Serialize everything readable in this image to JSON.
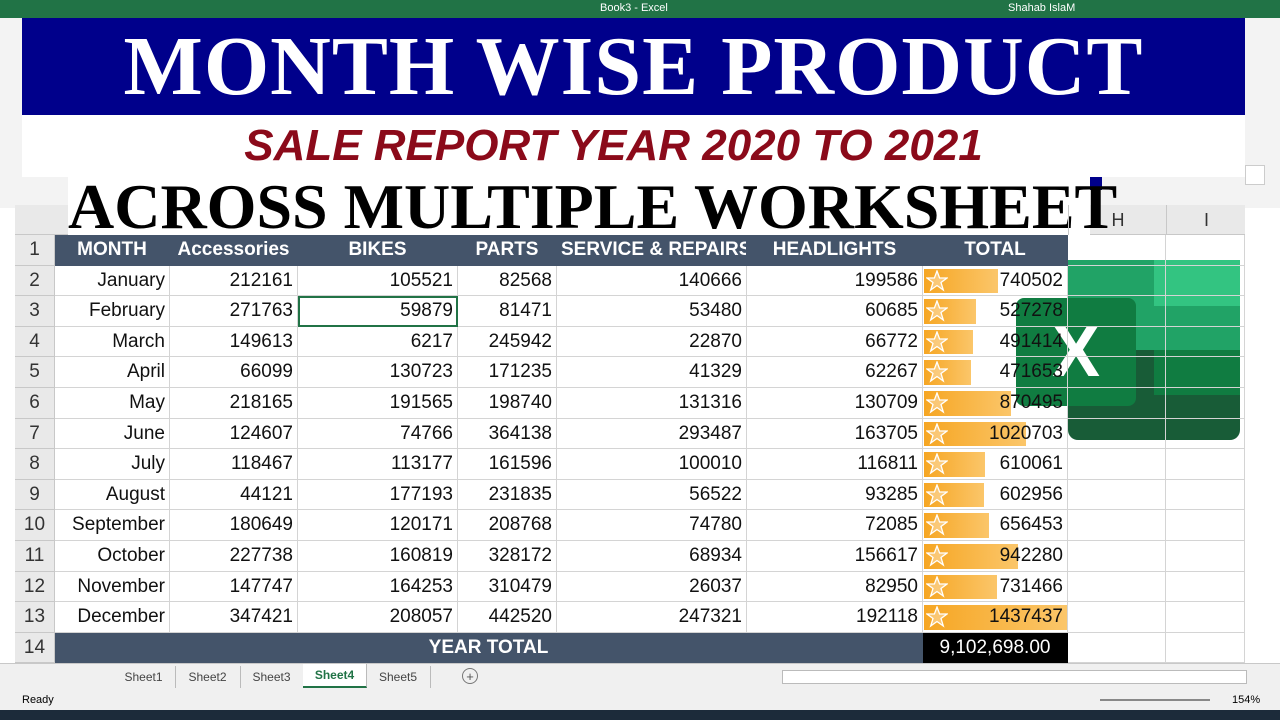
{
  "title_bar": {
    "document": "Book3 - Excel",
    "user": "Shahab IslaM"
  },
  "banner": {
    "line1": "MONTH WISE PRODUCT",
    "line2": "SALE REPORT YEAR 2020 TO 2021",
    "line3": "ACROSS MULTIPLE WORKSHEET"
  },
  "column_letters": [
    "H",
    "I"
  ],
  "row_numbers": [
    1,
    2,
    3,
    4,
    5,
    6,
    7,
    8,
    9,
    10,
    11,
    12,
    13,
    14
  ],
  "table": {
    "headers": [
      "MONTH",
      "Accessories",
      "BIKES",
      "PARTS",
      "SERVICE & REPAIRS",
      "HEADLIGHTS",
      "TOTAL"
    ],
    "rows": [
      [
        "January",
        212161,
        105521,
        82568,
        140666,
        199586,
        740502
      ],
      [
        "February",
        271763,
        59879,
        81471,
        53480,
        60685,
        527278
      ],
      [
        "March",
        149613,
        6217,
        245942,
        22870,
        66772,
        491414
      ],
      [
        "April",
        66099,
        130723,
        171235,
        41329,
        62267,
        471653
      ],
      [
        "May",
        218165,
        191565,
        198740,
        131316,
        130709,
        870495
      ],
      [
        "June",
        124607,
        74766,
        364138,
        293487,
        163705,
        1020703
      ],
      [
        "July",
        118467,
        113177,
        161596,
        100010,
        116811,
        610061
      ],
      [
        "August",
        44121,
        177193,
        231835,
        56522,
        93285,
        602956
      ],
      [
        "September",
        180649,
        120171,
        208768,
        74780,
        72085,
        656453
      ],
      [
        "October",
        227738,
        160819,
        328172,
        68934,
        156617,
        942280
      ],
      [
        "November",
        147747,
        164253,
        310479,
        26037,
        82950,
        731466
      ],
      [
        "December",
        347421,
        208057,
        442520,
        247321,
        192118,
        1437437
      ]
    ],
    "footer": {
      "label": "YEAR TOTAL",
      "value": "9,102,698.00"
    }
  },
  "sheets": [
    "Sheet1",
    "Sheet2",
    "Sheet3",
    "Sheet4",
    "Sheet5"
  ],
  "active_sheet": "Sheet4",
  "status": {
    "mode": "Ready",
    "zoom": "154%"
  }
}
